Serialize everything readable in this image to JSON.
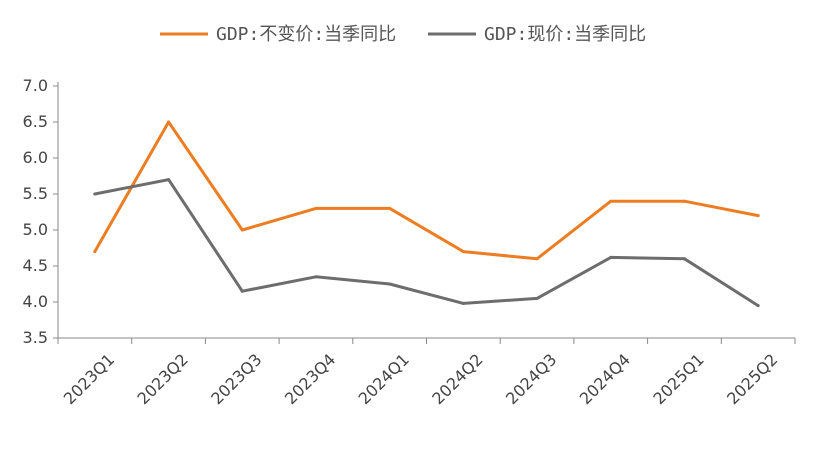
{
  "chart_data": {
    "type": "line",
    "categories": [
      "2023Q1",
      "2023Q2",
      "2023Q3",
      "2023Q4",
      "2024Q1",
      "2024Q2",
      "2024Q3",
      "2024Q4",
      "2025Q1",
      "2025Q2"
    ],
    "series": [
      {
        "name": "GDP:不变价:当季同比",
        "color": "#ED7D22",
        "values": [
          4.7,
          6.5,
          5.0,
          5.3,
          5.3,
          4.7,
          4.6,
          5.4,
          5.4,
          5.2
        ]
      },
      {
        "name": "GDP:现价:当季同比",
        "color": "#6D6D6D",
        "values": [
          5.5,
          5.7,
          4.15,
          4.35,
          4.25,
          3.98,
          4.05,
          4.62,
          4.6,
          3.95
        ]
      }
    ],
    "ylim": [
      3.5,
      7.0
    ],
    "yticks": [
      "7.0",
      "6.5",
      "6.0",
      "5.5",
      "5.0",
      "4.5",
      "4.0",
      "3.5"
    ],
    "grid": false,
    "legend_position": "top"
  }
}
